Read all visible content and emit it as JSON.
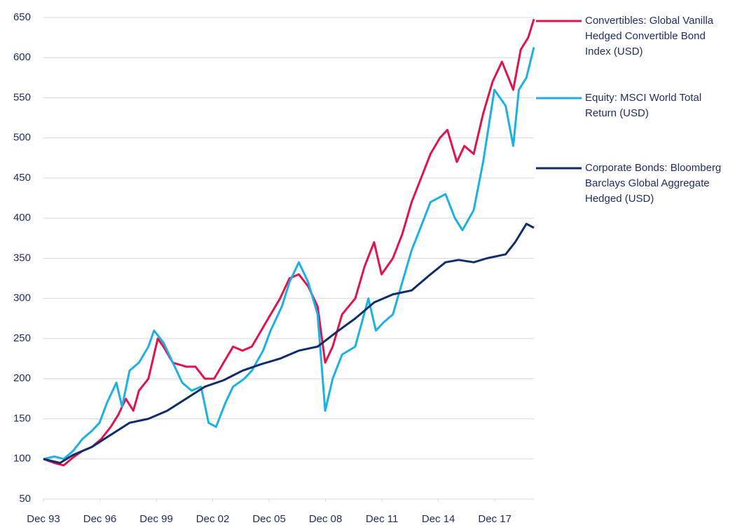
{
  "chart_data": {
    "type": "line",
    "xlim": [
      1993.92,
      2020.0
    ],
    "xticks": [
      {
        "value": 1993.92,
        "label": "Dec 93"
      },
      {
        "value": 1996.92,
        "label": "Dec 96"
      },
      {
        "value": 1999.92,
        "label": "Dec 99"
      },
      {
        "value": 2002.92,
        "label": "Dec 02"
      },
      {
        "value": 2005.92,
        "label": "Dec 05"
      },
      {
        "value": 2008.92,
        "label": "Dec 08"
      },
      {
        "value": 2011.92,
        "label": "Dec 11"
      },
      {
        "value": 2014.92,
        "label": "Dec 14"
      },
      {
        "value": 2017.92,
        "label": "Dec 17"
      }
    ],
    "ylim": [
      50,
      650
    ],
    "yticks": [
      50,
      100,
      150,
      200,
      250,
      300,
      350,
      400,
      450,
      500,
      550,
      600,
      650
    ],
    "grid": true,
    "legend": "right",
    "series": [
      {
        "name": "Convertibles: Global Vanilla Hedged Convertible Bond Index (USD)",
        "color": "#e0144c",
        "x": [
          1993.92,
          1994.5,
          1995.0,
          1995.5,
          1996.0,
          1996.5,
          1997.0,
          1997.5,
          1997.9,
          1998.3,
          1998.7,
          1999.0,
          1999.5,
          2000.0,
          2000.3,
          2000.8,
          2001.5,
          2002.0,
          2002.5,
          2003.0,
          2003.5,
          2004.0,
          2004.5,
          2005.0,
          2005.5,
          2006.0,
          2006.5,
          2007.0,
          2007.5,
          2008.0,
          2008.5,
          2008.9,
          2009.3,
          2009.8,
          2010.5,
          2011.0,
          2011.5,
          2011.9,
          2012.5,
          2013.0,
          2013.5,
          2014.0,
          2014.5,
          2015.0,
          2015.4,
          2015.9,
          2016.3,
          2016.8,
          2017.3,
          2017.8,
          2018.3,
          2018.9,
          2019.3,
          2019.7,
          2020.0
        ],
        "values": [
          100,
          95,
          92,
          102,
          110,
          115,
          125,
          140,
          155,
          175,
          160,
          185,
          200,
          250,
          240,
          220,
          215,
          215,
          200,
          200,
          220,
          240,
          235,
          240,
          260,
          280,
          300,
          325,
          330,
          315,
          290,
          220,
          240,
          280,
          300,
          340,
          370,
          330,
          350,
          380,
          420,
          450,
          480,
          500,
          510,
          470,
          490,
          480,
          530,
          570,
          595,
          560,
          610,
          625,
          648
        ]
      },
      {
        "name": "Equity: MSCI World Total Return (USD)",
        "color": "#1cb0e4",
        "x": [
          1993.92,
          1994.5,
          1995.0,
          1995.5,
          1996.0,
          1996.5,
          1996.9,
          1997.3,
          1997.8,
          1998.1,
          1998.5,
          1999.0,
          1999.5,
          1999.8,
          2000.3,
          2000.8,
          2001.3,
          2001.8,
          2002.3,
          2002.7,
          2003.1,
          2003.6,
          2004.0,
          2004.6,
          2005.0,
          2005.6,
          2006.0,
          2006.6,
          2007.0,
          2007.5,
          2008.0,
          2008.5,
          2008.9,
          2009.3,
          2009.8,
          2010.5,
          2011.2,
          2011.6,
          2012.0,
          2012.5,
          2013.0,
          2013.5,
          2014.0,
          2014.5,
          2015.3,
          2015.8,
          2016.2,
          2016.8,
          2017.3,
          2017.9,
          2018.5,
          2018.9,
          2019.2,
          2019.6,
          2020.0
        ],
        "values": [
          100,
          103,
          100,
          110,
          125,
          135,
          145,
          170,
          195,
          165,
          210,
          220,
          240,
          260,
          245,
          220,
          195,
          185,
          190,
          145,
          140,
          170,
          190,
          200,
          210,
          235,
          260,
          290,
          320,
          345,
          320,
          280,
          160,
          200,
          230,
          240,
          300,
          260,
          270,
          280,
          320,
          360,
          390,
          420,
          430,
          400,
          385,
          410,
          470,
          560,
          540,
          490,
          560,
          575,
          613
        ]
      },
      {
        "name": "Corporate Bonds: Bloomberg Barclays Global Aggregate Hedged (USD)",
        "color": "#0f2d6b",
        "x": [
          1993.92,
          1994.8,
          1995.5,
          1996.5,
          1997.5,
          1998.5,
          1999.5,
          2000.5,
          2001.5,
          2002.5,
          2003.5,
          2004.5,
          2005.5,
          2006.5,
          2007.5,
          2008.5,
          2009.5,
          2010.5,
          2011.5,
          2012.5,
          2013.5,
          2014.5,
          2015.3,
          2016.0,
          2016.8,
          2017.5,
          2018.5,
          2019.0,
          2019.6,
          2020.0
        ],
        "values": [
          100,
          95,
          105,
          115,
          130,
          145,
          150,
          160,
          175,
          190,
          198,
          210,
          218,
          225,
          235,
          240,
          258,
          275,
          295,
          305,
          310,
          330,
          345,
          348,
          345,
          350,
          355,
          370,
          393,
          388
        ]
      }
    ]
  }
}
